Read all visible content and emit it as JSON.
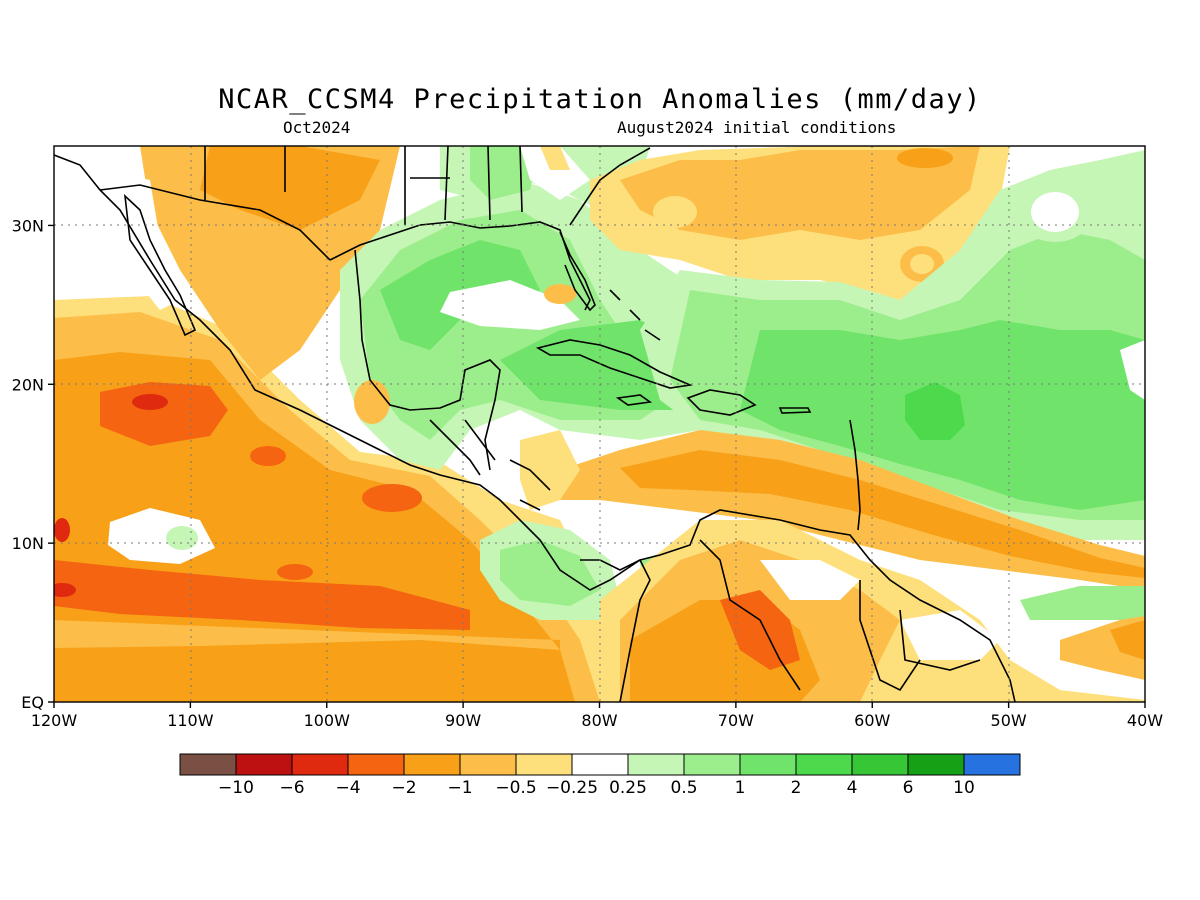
{
  "title": "NCAR_CCSM4 Precipitation Anomalies (mm/day)",
  "subtitle_left": "Oct2024",
  "subtitle_right": "August2024 initial conditions",
  "map": {
    "lon_range": [
      -120,
      -40
    ],
    "lat_range": [
      0,
      35
    ],
    "x_ticks": [
      {
        "lon": -120,
        "label": "120W"
      },
      {
        "lon": -110,
        "label": "110W"
      },
      {
        "lon": -100,
        "label": "100W"
      },
      {
        "lon": -90,
        "label": "90W"
      },
      {
        "lon": -80,
        "label": "80W"
      },
      {
        "lon": -70,
        "label": "70W"
      },
      {
        "lon": -60,
        "label": "60W"
      },
      {
        "lon": -50,
        "label": "50W"
      },
      {
        "lon": -40,
        "label": "40W"
      }
    ],
    "y_ticks": [
      {
        "lat": 0,
        "label": "EQ"
      },
      {
        "lat": 10,
        "label": "10N"
      },
      {
        "lat": 20,
        "label": "20N"
      },
      {
        "lat": 30,
        "label": "30N"
      }
    ],
    "grid": "dotted"
  },
  "colorbar": {
    "colors": [
      "#7a5044",
      "#bd1010",
      "#e02a10",
      "#f56410",
      "#f7a018",
      "#fcbe48",
      "#fde07c",
      "#ffffff",
      "#c6f6b6",
      "#9cee8c",
      "#70e46a",
      "#4cda4c",
      "#36c636",
      "#16a016",
      "#2672e0"
    ],
    "labels": [
      "-10",
      "-6",
      "-4",
      "-2",
      "-1",
      "-0.5",
      "-0.25",
      "0.25",
      "0.5",
      "1",
      "2",
      "4",
      "6",
      "10"
    ]
  },
  "colors": {
    "dry_1": "#fde07c",
    "dry_2": "#fcbe48",
    "dry_3": "#f7a018",
    "dry_4": "#f56410",
    "dry_5": "#e02a10",
    "wet_1": "#c6f6b6",
    "wet_2": "#9cee8c",
    "wet_3": "#70e46a",
    "wet_4": "#4cda4c"
  }
}
